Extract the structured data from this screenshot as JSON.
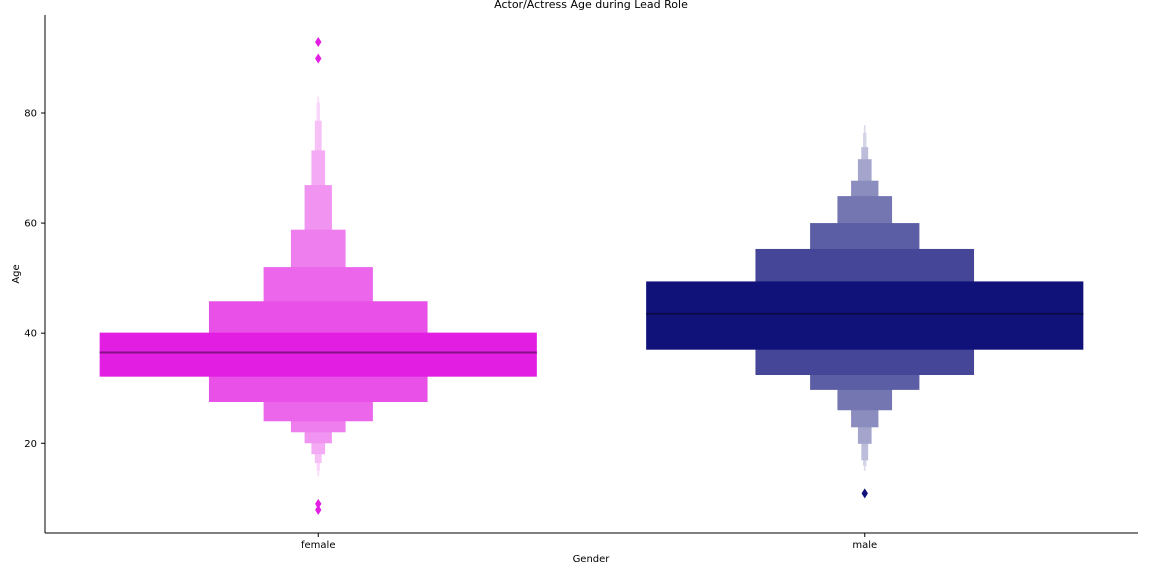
{
  "chart_data": {
    "type": "boxen",
    "title": "Actor/Actress Age during Lead Role",
    "xlabel": "Gender",
    "ylabel": "Age",
    "categories": [
      "female",
      "male"
    ],
    "ylim": [
      3.7,
      97.8
    ],
    "yticks": [
      20,
      40,
      60,
      80
    ],
    "grid": false,
    "series": [
      {
        "category": "female",
        "color": "#e11ee1",
        "median": 36.5,
        "boxes": [
          {
            "low": 32.1,
            "high": 40.1
          },
          {
            "low": 27.5,
            "high": 45.8
          },
          {
            "low": 24.0,
            "high": 52.0
          },
          {
            "low": 22.0,
            "high": 58.8
          },
          {
            "low": 20.0,
            "high": 66.9
          },
          {
            "low": 18.0,
            "high": 73.2
          },
          {
            "low": 16.4,
            "high": 78.6
          },
          {
            "low": 15.0,
            "high": 81.9
          },
          {
            "low": 14.0,
            "high": 83.0
          }
        ],
        "outliers": [
          92.9,
          89.9,
          9.0,
          7.9
        ]
      },
      {
        "category": "male",
        "color": "#10127a",
        "median": 43.5,
        "boxes": [
          {
            "low": 37.0,
            "high": 49.4
          },
          {
            "low": 32.4,
            "high": 55.3
          },
          {
            "low": 29.7,
            "high": 60.0
          },
          {
            "low": 26.0,
            "high": 64.9
          },
          {
            "low": 22.9,
            "high": 67.7
          },
          {
            "low": 19.9,
            "high": 71.6
          },
          {
            "low": 16.9,
            "high": 73.8
          },
          {
            "low": 15.9,
            "high": 76.4
          },
          {
            "low": 15.0,
            "high": 77.8
          }
        ],
        "outliers": [
          10.9
        ]
      }
    ]
  }
}
